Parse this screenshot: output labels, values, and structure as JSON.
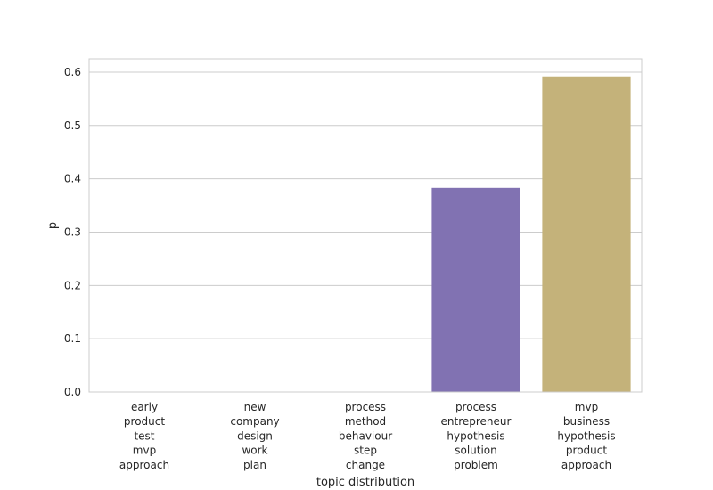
{
  "chart_data": {
    "type": "bar",
    "categories": [
      [
        "early",
        "product",
        "test",
        "mvp",
        "approach"
      ],
      [
        "new",
        "company",
        "design",
        "work",
        "plan"
      ],
      [
        "process",
        "method",
        "behaviour",
        "step",
        "change"
      ],
      [
        "process",
        "entrepreneur",
        "hypothesis",
        "solution",
        "problem"
      ],
      [
        "mvp",
        "business",
        "hypothesis",
        "product",
        "approach"
      ]
    ],
    "values": [
      0.0,
      0.0,
      0.0,
      0.383,
      0.592
    ],
    "colors": [
      "#4c72b0",
      "#55a868",
      "#c44e52",
      "#8172b2",
      "#c4b27a"
    ],
    "xlabel": "topic distribution",
    "ylabel": "p",
    "ylim": [
      0,
      0.625
    ],
    "yticks": [
      0.0,
      0.1,
      0.2,
      0.3,
      0.4,
      0.5,
      0.6
    ],
    "ytick_labels": [
      "0.0",
      "0.1",
      "0.2",
      "0.3",
      "0.4",
      "0.5",
      "0.6"
    ],
    "grid": true
  }
}
